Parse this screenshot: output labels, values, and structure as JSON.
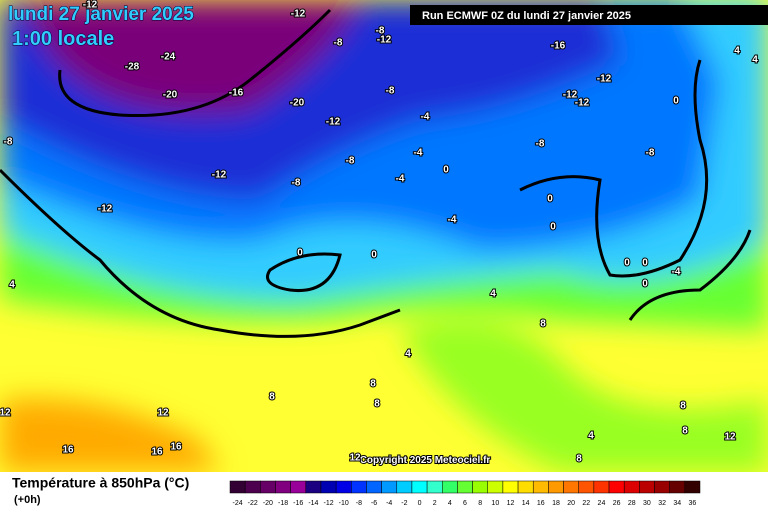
{
  "header": {
    "title": "lundi 27 janvier 2025",
    "time": "1:00 locale",
    "run": "Run ECMWF 0Z du lundi 27 janvier 2025"
  },
  "copyright": "Copyright 2025 Meteociel.fr",
  "legend": {
    "title": "Température à 850hPa (°C)",
    "step": "(+0h)",
    "ticks": [
      -24,
      -22,
      -20,
      -18,
      -16,
      -14,
      -12,
      -10,
      -8,
      -6,
      -4,
      -2,
      0,
      2,
      4,
      6,
      8,
      10,
      12,
      14,
      16,
      18,
      20,
      22,
      24,
      26,
      28,
      30,
      32,
      34,
      36
    ],
    "colors": [
      "#330033",
      "#4d004d",
      "#660066",
      "#800080",
      "#990099",
      "#1a0080",
      "#0000b3",
      "#0000e6",
      "#0033ff",
      "#0066ff",
      "#0099ff",
      "#00ccff",
      "#00ffff",
      "#33ffcc",
      "#33ff66",
      "#66ff33",
      "#99ff00",
      "#ccff00",
      "#ffff00",
      "#ffdd00",
      "#ffbb00",
      "#ff9900",
      "#ff7700",
      "#ff5500",
      "#ff3300",
      "#ff0000",
      "#dd0000",
      "#bb0000",
      "#990000",
      "#660000",
      "#330000"
    ]
  },
  "map_labels": [
    -12,
    -12,
    -8,
    -12,
    -8,
    -16,
    -24,
    -28,
    -20,
    -16,
    -20,
    -8,
    -12,
    -12,
    -12,
    -12,
    -4,
    -8,
    -8,
    -8,
    -4,
    -8,
    -12,
    -4,
    -8,
    -12,
    0,
    0,
    -4,
    0,
    0,
    0,
    0,
    0,
    -4,
    0,
    4,
    4,
    8,
    4,
    8,
    8,
    8,
    12,
    12,
    16,
    16,
    16,
    12,
    4,
    8,
    8,
    12,
    8,
    0,
    4,
    4
  ]
}
